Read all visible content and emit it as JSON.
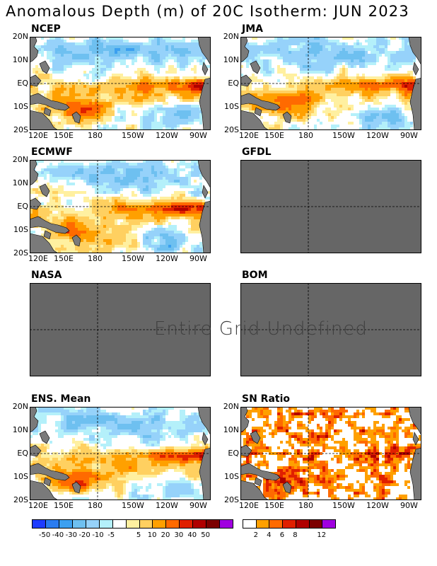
{
  "title": "Anomalous Depth (m) of 20C Isotherm: JUN 2023",
  "overlay_text": "Entire Grid Undefined",
  "lat_labels": [
    "20N",
    "10N",
    "EQ",
    "10S",
    "20S"
  ],
  "lon_labels": [
    "120E",
    "150E",
    "180",
    "150W",
    "120W",
    "90W"
  ],
  "panels": [
    {
      "name": "NCEP",
      "kind": "anom",
      "defined": true
    },
    {
      "name": "JMA",
      "kind": "anom",
      "defined": true
    },
    {
      "name": "ECMWF",
      "kind": "anom",
      "defined": true
    },
    {
      "name": "GFDL",
      "kind": "anom",
      "defined": false
    },
    {
      "name": "NASA",
      "kind": "anom",
      "defined": false
    },
    {
      "name": "BOM",
      "kind": "anom",
      "defined": false
    },
    {
      "name": "ENS. Mean",
      "kind": "anom",
      "defined": true
    },
    {
      "name": "SN Ratio",
      "kind": "snr",
      "defined": true
    }
  ],
  "colorbar_anom": {
    "colors": [
      "#1e3cff",
      "#2a7cf0",
      "#3ca0f0",
      "#6ec0f0",
      "#96d2fa",
      "#b4f0fa",
      "#ffffff",
      "#fff0a0",
      "#ffd060",
      "#ffa000",
      "#ff6a00",
      "#e02000",
      "#b00000",
      "#7c0000",
      "#a000e0"
    ],
    "labels": [
      "-50",
      "-40",
      "-30",
      "-20",
      "-10",
      "-5",
      "5",
      "10",
      "20",
      "30",
      "40",
      "50"
    ]
  },
  "colorbar_snr": {
    "colors": [
      "#ffffff",
      "#ffa000",
      "#ff6a00",
      "#e02000",
      "#b00000",
      "#7c0000",
      "#a000e0"
    ],
    "labels": [
      "2",
      "4",
      "6",
      "8",
      "12"
    ]
  },
  "colors": {
    "land": "#7a7a7a",
    "undefined_panel": "#666666"
  }
}
